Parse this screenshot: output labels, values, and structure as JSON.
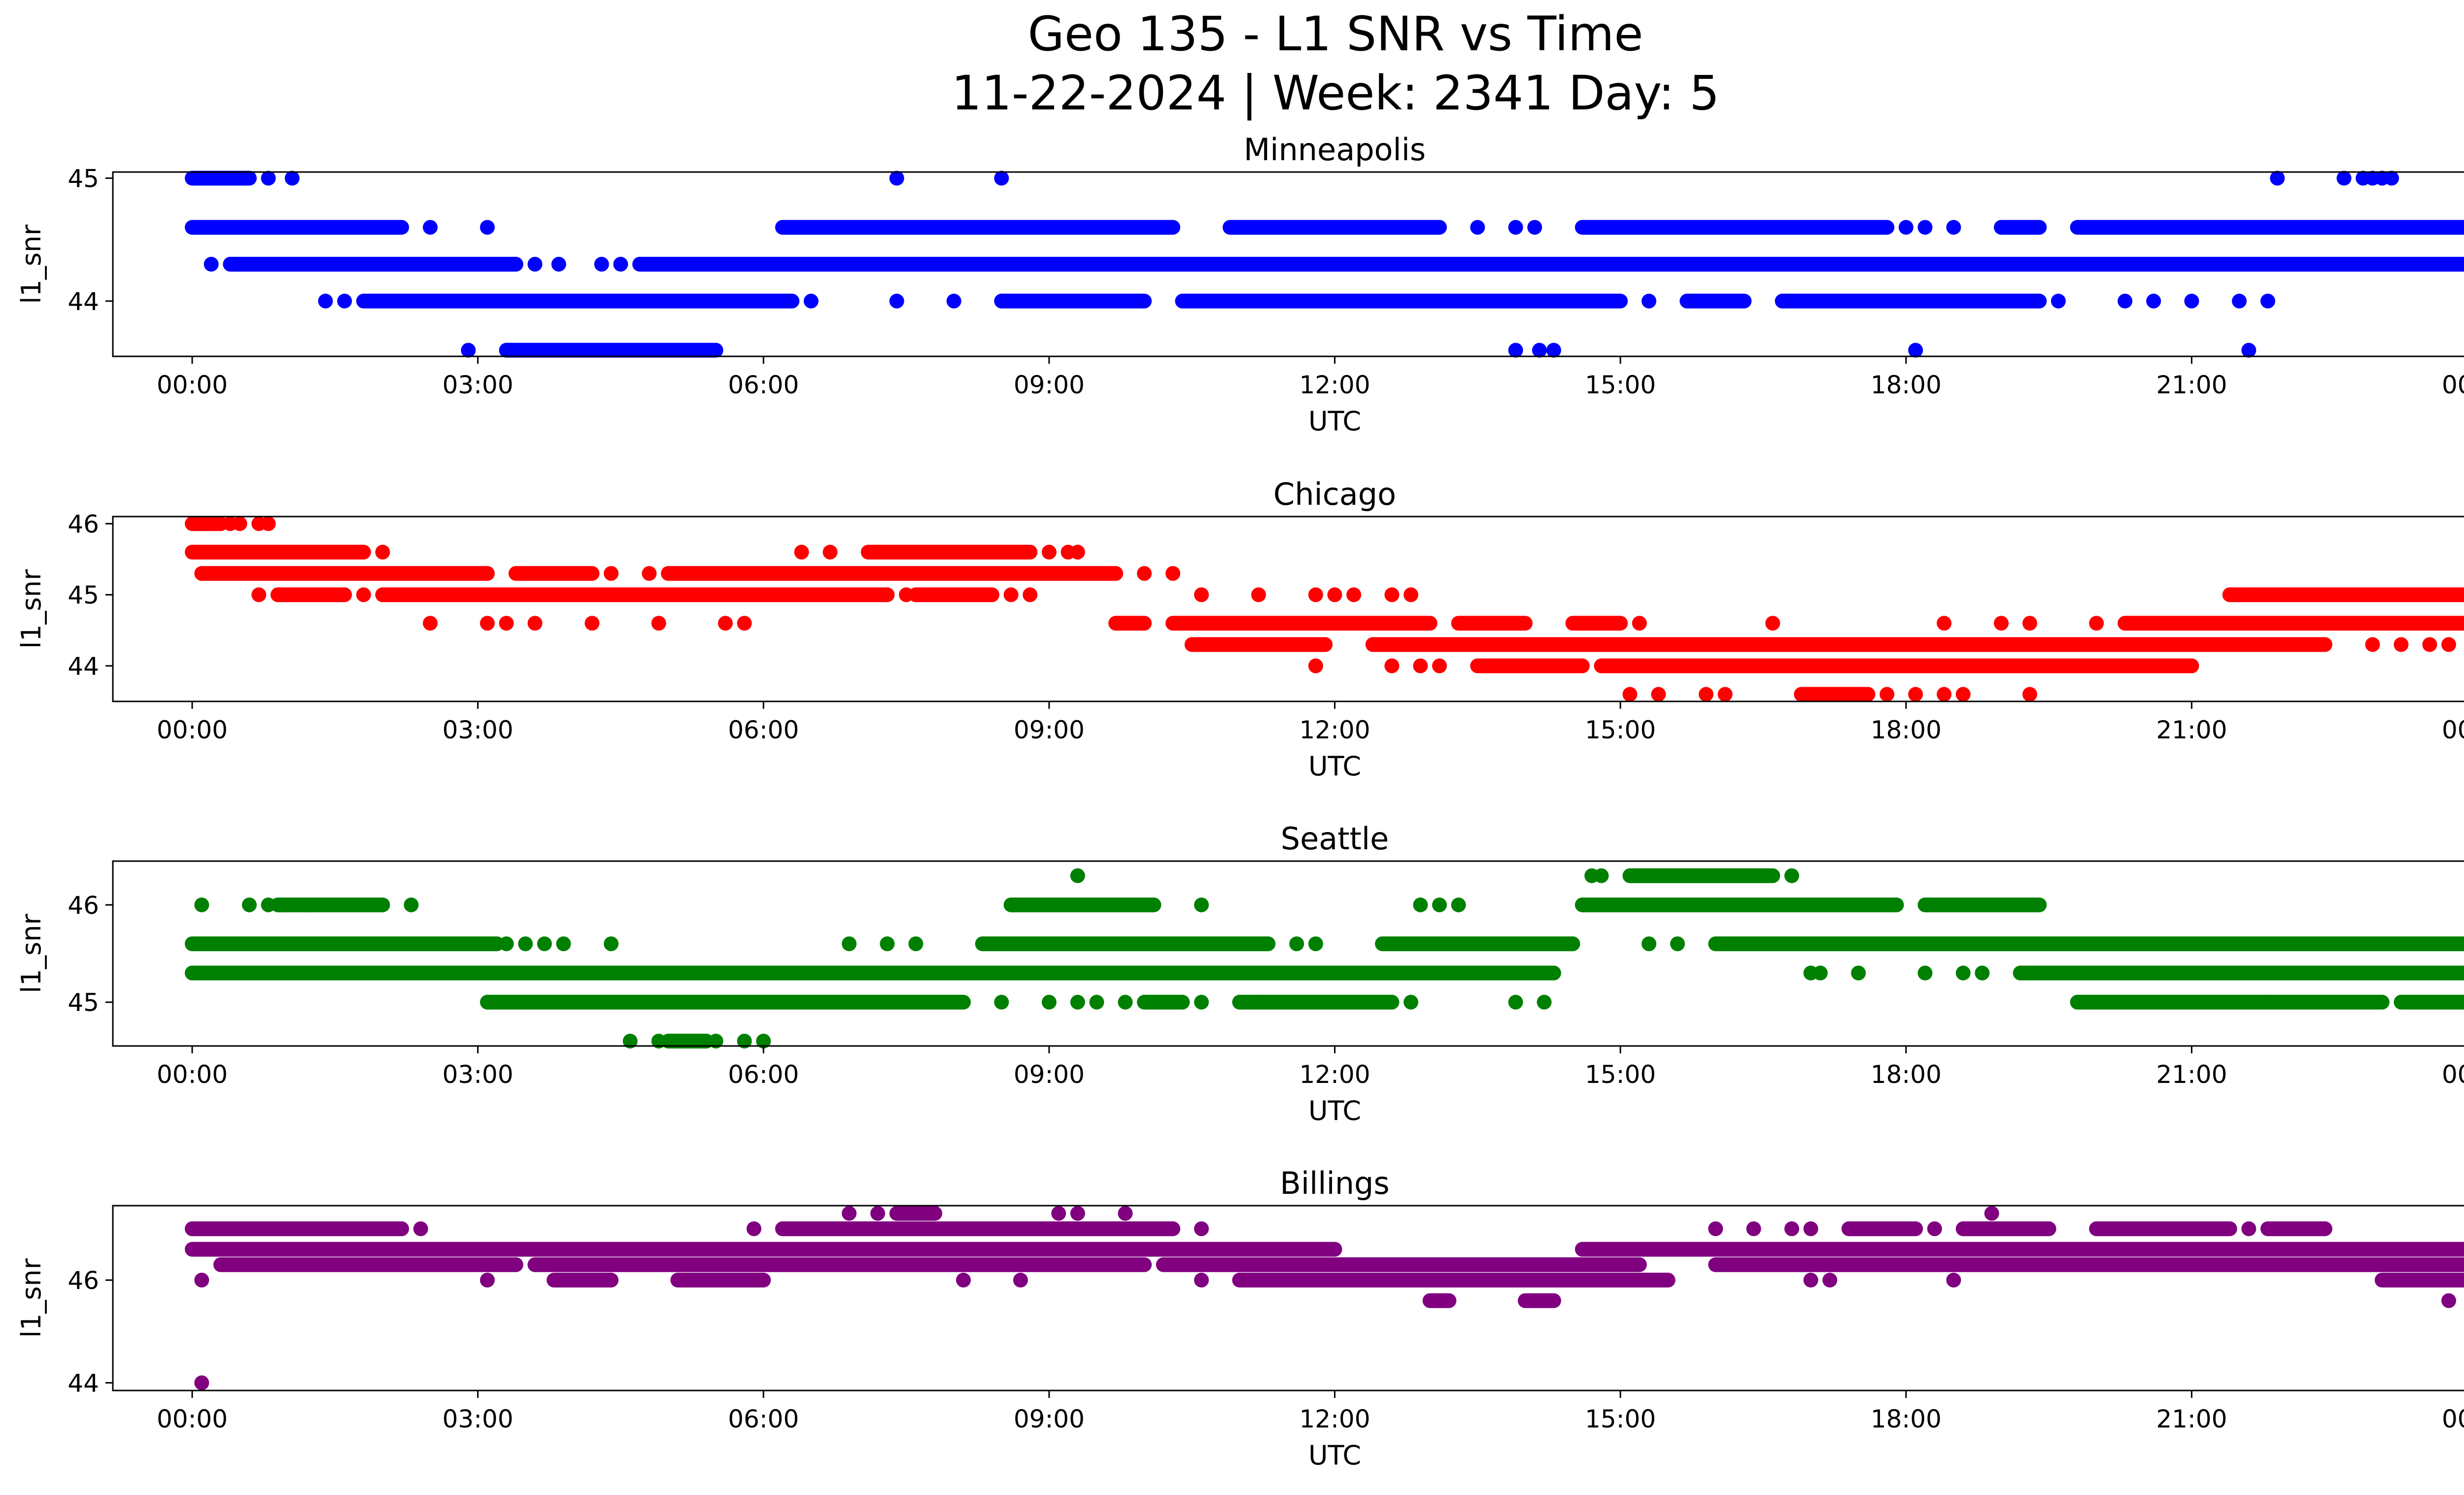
{
  "figure": {
    "title_line1": "Geo 135 - L1 SNR vs Time",
    "title_line2": "11-22-2024 | Week: 2341 Day: 5"
  },
  "chart_data": [
    {
      "type": "scatter",
      "title": "Minneapolis",
      "xlabel": "UTC",
      "ylabel": "l1_snr",
      "color": "#0000ff",
      "xlim": [
        "-0:50",
        "24:50"
      ],
      "ylim": [
        43.55,
        45.05
      ],
      "x_ticks": [
        "00:00",
        "03:00",
        "06:00",
        "09:00",
        "12:00",
        "15:00",
        "18:00",
        "21:00",
        "00:00"
      ],
      "y_ticks": [
        44,
        45
      ],
      "series": [
        {
          "y": 45.0,
          "ranges": [
            [
              0.0,
              0.6
            ]
          ],
          "points": [
            0.8,
            1.05,
            7.4,
            8.5,
            21.9,
            22.6,
            22.8,
            22.9,
            23.0,
            23.1
          ]
        },
        {
          "y": 44.6,
          "ranges": [
            [
              0.0,
              2.2
            ],
            [
              6.2,
              10.3
            ],
            [
              10.9,
              13.1
            ],
            [
              14.6,
              17.8
            ],
            [
              19.0,
              19.4
            ],
            [
              19.8,
              24.0
            ]
          ],
          "points": [
            2.5,
            3.1,
            13.5,
            13.9,
            14.1,
            18.0,
            18.2,
            18.5
          ]
        },
        {
          "y": 44.3,
          "ranges": [
            [
              0.4,
              3.4
            ],
            [
              4.7,
              24.0
            ]
          ],
          "points": [
            0.2,
            3.6,
            3.85,
            4.3,
            4.5
          ]
        },
        {
          "y": 44.0,
          "ranges": [
            [
              1.8,
              6.3
            ],
            [
              8.5,
              10.0
            ],
            [
              10.4,
              15.0
            ],
            [
              15.7,
              16.3
            ],
            [
              16.7,
              19.4
            ]
          ],
          "points": [
            1.4,
            1.6,
            6.5,
            7.4,
            8.0,
            15.3,
            19.6,
            20.3,
            20.6,
            21.0,
            21.5,
            21.8
          ]
        },
        {
          "y": 43.6,
          "ranges": [
            [
              3.3,
              5.5
            ]
          ],
          "points": [
            2.9,
            13.9,
            14.15,
            14.3,
            18.1,
            21.6
          ]
        }
      ]
    },
    {
      "type": "scatter",
      "title": "Chicago",
      "xlabel": "UTC",
      "ylabel": "l1_snr",
      "color": "#ff0000",
      "xlim": [
        "-0:50",
        "24:50"
      ],
      "ylim": [
        43.5,
        46.1
      ],
      "x_ticks": [
        "00:00",
        "03:00",
        "06:00",
        "09:00",
        "12:00",
        "15:00",
        "18:00",
        "21:00",
        "00:00"
      ],
      "y_ticks": [
        44,
        45,
        46
      ],
      "series": [
        {
          "y": 46.0,
          "ranges": [
            [
              0.0,
              0.3
            ]
          ],
          "points": [
            0.4,
            0.5,
            0.7,
            0.8
          ]
        },
        {
          "y": 45.6,
          "ranges": [
            [
              0.0,
              1.8
            ],
            [
              7.1,
              8.8
            ]
          ],
          "points": [
            2.0,
            6.4,
            6.7,
            9.0,
            9.2,
            9.3
          ]
        },
        {
          "y": 45.3,
          "ranges": [
            [
              0.1,
              3.1
            ],
            [
              3.4,
              4.2
            ],
            [
              5.0,
              9.7
            ]
          ],
          "points": [
            4.4,
            4.8,
            10.0,
            10.3
          ]
        },
        {
          "y": 45.0,
          "ranges": [
            [
              0.9,
              1.6
            ],
            [
              2.0,
              7.3
            ],
            [
              7.6,
              8.4
            ]
          ],
          "points": [
            0.7,
            1.8,
            7.5,
            8.6,
            8.8,
            10.6,
            11.2,
            11.8,
            12.0,
            12.2,
            12.6,
            12.8,
            21.6,
            22.0
          ]
        },
        {
          "y": 45.0,
          "ranges": [
            [
              21.4,
              24.0
            ]
          ],
          "points": []
        },
        {
          "y": 44.6,
          "ranges": [
            [
              9.7,
              10.0
            ],
            [
              10.3,
              13.0
            ],
            [
              13.3,
              14.0
            ],
            [
              14.5,
              15.0
            ],
            [
              20.3,
              24.0
            ]
          ],
          "points": [
            2.5,
            3.1,
            3.3,
            3.6,
            4.2,
            4.9,
            5.6,
            5.8,
            15.2,
            16.6,
            18.4,
            19.0,
            19.3,
            20.0
          ]
        },
        {
          "y": 44.3,
          "ranges": [
            [
              10.5,
              11.9
            ],
            [
              12.4,
              22.4
            ]
          ],
          "points": [
            22.9,
            23.2,
            23.5,
            23.7,
            24.0
          ]
        },
        {
          "y": 44.0,
          "ranges": [
            [
              13.5,
              14.6
            ],
            [
              14.8,
              21.0
            ]
          ],
          "points": [
            11.8,
            12.6,
            12.9,
            13.1
          ]
        },
        {
          "y": 43.6,
          "ranges": [
            [
              16.9,
              17.6
            ]
          ],
          "points": [
            15.1,
            15.4,
            15.9,
            16.1,
            17.8,
            18.1,
            18.4,
            18.6,
            19.3
          ]
        }
      ]
    },
    {
      "type": "scatter",
      "title": "Seattle",
      "xlabel": "UTC",
      "ylabel": "l1_snr",
      "color": "#008000",
      "xlim": [
        "-0:50",
        "24:50"
      ],
      "ylim": [
        44.55,
        46.45
      ],
      "x_ticks": [
        "00:00",
        "03:00",
        "06:00",
        "09:00",
        "12:00",
        "15:00",
        "18:00",
        "21:00",
        "00:00"
      ],
      "y_ticks": [
        45,
        46
      ],
      "series": [
        {
          "y": 46.3,
          "ranges": [
            [
              15.1,
              16.6
            ]
          ],
          "points": [
            9.3,
            14.7,
            14.8,
            16.8
          ]
        },
        {
          "y": 46.0,
          "ranges": [
            [
              0.9,
              2.0
            ],
            [
              8.6,
              10.1
            ],
            [
              14.6,
              17.9
            ],
            [
              18.2,
              19.4
            ]
          ],
          "points": [
            0.1,
            0.6,
            0.8,
            1.0,
            1.2,
            2.3,
            10.6,
            12.9,
            13.1,
            13.3
          ]
        },
        {
          "y": 45.6,
          "ranges": [
            [
              0.0,
              3.2
            ],
            [
              8.3,
              11.3
            ],
            [
              12.5,
              14.5
            ],
            [
              16.0,
              24.0
            ]
          ],
          "points": [
            3.3,
            3.5,
            3.7,
            3.9,
            4.4,
            6.9,
            7.3,
            7.6,
            11.6,
            11.8,
            15.3,
            15.6
          ]
        },
        {
          "y": 45.3,
          "ranges": [
            [
              0.0,
              14.3
            ],
            [
              19.2,
              24.0
            ]
          ],
          "points": [
            17.0,
            17.1,
            17.5,
            18.2,
            18.6,
            18.8
          ]
        },
        {
          "y": 45.0,
          "ranges": [
            [
              3.1,
              8.1
            ],
            [
              10.0,
              10.4
            ],
            [
              11.0,
              12.6
            ],
            [
              19.8,
              23.0
            ],
            [
              23.2,
              24.0
            ]
          ],
          "points": [
            8.5,
            9.0,
            9.3,
            9.5,
            9.8,
            10.6,
            11.2,
            12.8,
            13.9,
            14.2,
            21.8,
            22.3
          ]
        },
        {
          "y": 44.6,
          "ranges": [
            [
              5.0,
              5.4
            ]
          ],
          "points": [
            4.6,
            4.9,
            5.5,
            5.8,
            6.0
          ]
        }
      ]
    },
    {
      "type": "scatter",
      "title": "Billings",
      "xlabel": "UTC",
      "ylabel": "l1_snr",
      "color": "#800080",
      "xlim": [
        "-0:50",
        "24:50"
      ],
      "ylim": [
        43.85,
        47.45
      ],
      "x_ticks": [
        "00:00",
        "03:00",
        "06:00",
        "09:00",
        "12:00",
        "15:00",
        "18:00",
        "21:00",
        "00:00"
      ],
      "y_ticks": [
        44,
        46
      ],
      "series": [
        {
          "y": 47.3,
          "ranges": [
            [
              7.4,
              7.8
            ]
          ],
          "points": [
            6.9,
            7.2,
            9.1,
            9.3,
            9.8,
            18.9
          ]
        },
        {
          "y": 47.0,
          "ranges": [
            [
              0.0,
              2.2
            ],
            [
              6.2,
              10.3
            ],
            [
              17.4,
              18.1
            ],
            [
              18.6,
              19.5
            ],
            [
              20.0,
              21.4
            ],
            [
              21.8,
              22.4
            ]
          ],
          "points": [
            2.4,
            5.9,
            10.6,
            16.0,
            16.4,
            16.8,
            17.0,
            18.3,
            21.6
          ]
        },
        {
          "y": 46.6,
          "ranges": [
            [
              0.0,
              6.5
            ],
            [
              6.5,
              12.0
            ],
            [
              14.6,
              24.0
            ]
          ],
          "points": []
        },
        {
          "y": 46.3,
          "ranges": [
            [
              0.3,
              3.4
            ],
            [
              3.6,
              10.0
            ],
            [
              10.2,
              15.2
            ],
            [
              16.0,
              24.0
            ]
          ],
          "points": []
        },
        {
          "y": 46.0,
          "ranges": [
            [
              3.8,
              4.4
            ],
            [
              5.1,
              6.0
            ],
            [
              11.0,
              15.5
            ],
            [
              23.0,
              24.0
            ]
          ],
          "points": [
            0.1,
            3.1,
            8.1,
            8.7,
            10.6,
            17.0,
            17.2,
            18.5
          ]
        },
        {
          "y": 45.6,
          "ranges": [
            [
              13.0,
              13.2
            ],
            [
              14.0,
              14.3
            ]
          ],
          "points": [
            23.7
          ]
        },
        {
          "y": 44.0,
          "ranges": [],
          "points": [
            0.1
          ]
        }
      ]
    }
  ]
}
